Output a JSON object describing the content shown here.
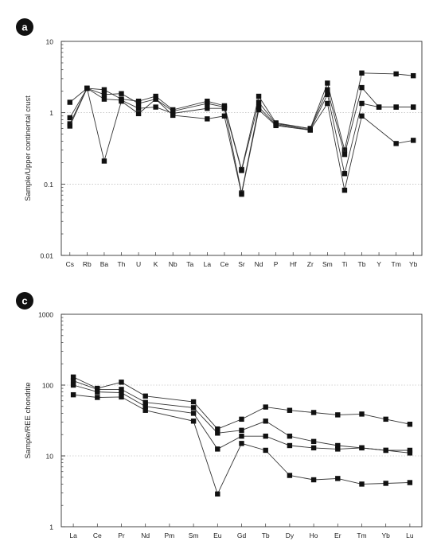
{
  "chart_data": [
    {
      "type": "line",
      "panel_label": "a",
      "ylabel": "Sample/Upper continental crust",
      "xlabel": "",
      "yscale": "log",
      "ylim": [
        0.01,
        10
      ],
      "yticks": [
        "0.01",
        "0.1",
        "1",
        "10"
      ],
      "grid": "dotted horizontal at decades",
      "categories": [
        "Cs",
        "Rb",
        "Ba",
        "Th",
        "U",
        "K",
        "Nb",
        "Ta",
        "La",
        "Ce",
        "Sr",
        "Nd",
        "P",
        "Hf",
        "Zr",
        "Sm",
        "Ti",
        "Tb",
        "Y",
        "Tm",
        "Yb"
      ],
      "series": [
        {
          "values": [
            1.4,
            2.2,
            2.1,
            1.55,
            1.45,
            1.7,
            1.1,
            null,
            1.45,
            1.25,
            0.16,
            1.7,
            0.72,
            null,
            0.6,
            2.6,
            0.3,
            3.6,
            null,
            3.5,
            3.3
          ]
        },
        {
          "values": [
            0.85,
            2.2,
            1.8,
            1.85,
            1.35,
            1.55,
            1.05,
            null,
            1.35,
            1.2,
            0.155,
            1.4,
            0.7,
            null,
            0.6,
            2.1,
            0.26,
            2.25,
            1.2,
            1.2,
            1.2
          ]
        },
        {
          "values": [
            0.7,
            2.2,
            1.55,
            1.5,
            1.15,
            1.2,
            0.98,
            null,
            1.15,
            1.15,
            0.075,
            1.2,
            0.68,
            null,
            0.58,
            1.8,
            0.14,
            1.35,
            1.2,
            1.2,
            1.2
          ]
        },
        {
          "values": [
            0.65,
            2.2,
            0.21,
            1.45,
            0.97,
            1.55,
            0.92,
            null,
            0.82,
            0.9,
            0.072,
            1.1,
            0.66,
            null,
            0.57,
            1.35,
            0.082,
            0.9,
            null,
            0.37,
            0.41
          ]
        }
      ]
    },
    {
      "type": "line",
      "panel_label": "c",
      "ylabel": "Sample/REE chondrite",
      "xlabel": "",
      "yscale": "log",
      "ylim": [
        1,
        1000
      ],
      "yticks": [
        "1",
        "10",
        "100",
        "1000"
      ],
      "grid": "dotted horizontal at decades",
      "categories": [
        "La",
        "Ce",
        "Pr",
        "Nd",
        "Pm",
        "Sm",
        "Eu",
        "Gd",
        "Tb",
        "Dy",
        "Ho",
        "Er",
        "Tm",
        "Yb",
        "Lu"
      ],
      "series": [
        {
          "values": [
            130,
            90,
            110,
            70,
            null,
            58,
            24,
            33,
            49,
            44,
            41,
            38,
            39,
            33,
            28
          ]
        },
        {
          "values": [
            115,
            87,
            87,
            57,
            null,
            48,
            21,
            23,
            31,
            19,
            16,
            14,
            13,
            12,
            12
          ]
        },
        {
          "values": [
            100,
            80,
            78,
            50,
            null,
            40,
            12.5,
            19,
            19,
            14,
            13,
            12.5,
            13,
            12,
            11
          ]
        },
        {
          "values": [
            73,
            67,
            68,
            44,
            null,
            31,
            2.9,
            15,
            12,
            5.3,
            4.6,
            4.8,
            4.0,
            4.1,
            4.2
          ]
        }
      ]
    }
  ]
}
